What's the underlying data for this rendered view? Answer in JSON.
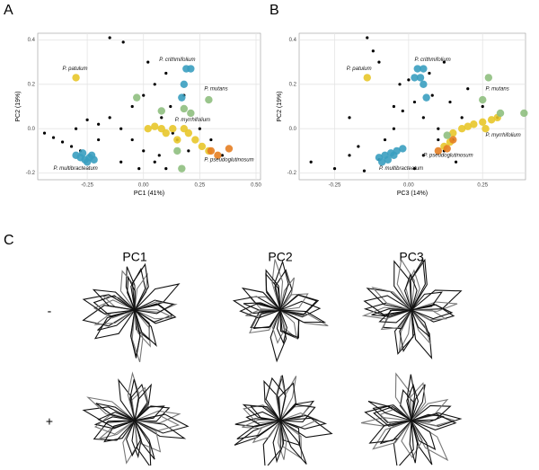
{
  "panels": [
    "A",
    "B",
    "C"
  ],
  "chart_data": [
    {
      "type": "scatter",
      "xlabel": "PC1 (41%)",
      "ylabel": "PC2 (19%)",
      "xlim": [
        -0.47,
        0.52
      ],
      "ylim": [
        -0.23,
        0.43
      ],
      "xticks": [
        -0.25,
        {
          "value": 0,
          "label": "0.00"
        },
        0.25,
        {
          "value": 0.5,
          "label": "0.50"
        }
      ],
      "yticks": [
        -0.2,
        {
          "value": 0,
          "label": "0.0"
        },
        0.2,
        0.4
      ],
      "grid": true,
      "series": [
        {
          "color": "#000000",
          "x": [
            -0.44,
            -0.4,
            -0.36,
            -0.32,
            -0.28,
            -0.24,
            -0.3,
            -0.25,
            -0.2,
            -0.15,
            -0.1,
            -0.05,
            0.0,
            0.05,
            0.1,
            -0.1,
            -0.05,
            0.0,
            0.05,
            0.1,
            0.12,
            -0.15,
            -0.09,
            0.02,
            0.08,
            0.15,
            0.2,
            0.25,
            0.3,
            0.35,
            0.18,
            -0.02,
            0.07,
            -0.2,
            0.13
          ],
          "y": [
            -0.02,
            -0.04,
            -0.06,
            -0.08,
            -0.1,
            -0.12,
            0.0,
            0.04,
            0.02,
            0.05,
            0.0,
            -0.05,
            -0.1,
            -0.15,
            -0.18,
            -0.15,
            0.1,
            0.15,
            0.2,
            0.25,
            0.1,
            0.41,
            0.39,
            0.3,
            0.05,
            -0.05,
            -0.1,
            0.0,
            -0.05,
            -0.12,
            0.15,
            -0.18,
            -0.12,
            -0.05,
            -0.02
          ]
        },
        {
          "color": "#3a9fc0",
          "x": [
            -0.3,
            -0.28,
            -0.26,
            -0.24,
            -0.22,
            -0.27,
            -0.23,
            -0.25,
            0.19,
            0.21,
            0.18,
            0.17
          ],
          "y": [
            -0.12,
            -0.13,
            -0.14,
            -0.13,
            -0.14,
            -0.11,
            -0.12,
            -0.15,
            0.27,
            0.27,
            0.2,
            0.14
          ]
        },
        {
          "color": "#e8c62a",
          "x": [
            -0.3,
            0.02,
            0.05,
            0.08,
            0.1,
            0.13,
            0.18,
            0.2,
            0.23,
            0.26,
            0.29,
            0.15
          ],
          "y": [
            0.23,
            0.0,
            0.01,
            0.0,
            -0.02,
            0.0,
            0.0,
            -0.02,
            -0.05,
            -0.08,
            -0.1,
            -0.05
          ]
        },
        {
          "color": "#8fbf7f",
          "x": [
            -0.03,
            0.18,
            0.21,
            0.29,
            0.08,
            0.17,
            0.15
          ],
          "y": [
            0.14,
            0.09,
            0.07,
            0.13,
            0.08,
            -0.18,
            -0.1
          ]
        },
        {
          "color": "#e67e22",
          "x": [
            0.3,
            0.38,
            0.33
          ],
          "y": [
            -0.1,
            -0.09,
            -0.12
          ]
        }
      ],
      "annotations": [
        {
          "text": "P. patulum",
          "x": -0.36,
          "y": 0.27
        },
        {
          "text": "P. crithmifolium",
          "x": 0.07,
          "y": 0.31
        },
        {
          "text": "P. mutans",
          "x": 0.27,
          "y": 0.18
        },
        {
          "text": "P. myrrhifolium",
          "x": 0.14,
          "y": 0.04
        },
        {
          "text": "P. pseudoglutinosum",
          "x": 0.27,
          "y": -0.14
        },
        {
          "text": "P. multibracteatum",
          "x": -0.4,
          "y": -0.18
        }
      ]
    },
    {
      "type": "scatter",
      "xlabel": "PC3 (14%)",
      "ylabel": "PC2 (19%)",
      "xlim": [
        -0.37,
        0.395
      ],
      "ylim": [
        -0.23,
        0.43
      ],
      "xticks": [
        -0.25,
        {
          "value": 0,
          "label": "0.00"
        },
        0.25
      ],
      "yticks": [
        -0.2,
        {
          "value": 0,
          "label": "0.0"
        },
        0.2,
        0.4
      ],
      "grid": true,
      "series": [
        {
          "color": "#000000",
          "x": [
            -0.33,
            -0.25,
            -0.2,
            -0.17,
            -0.14,
            -0.12,
            -0.1,
            -0.08,
            -0.05,
            -0.03,
            0.0,
            0.02,
            0.05,
            0.08,
            0.1,
            0.12,
            0.15,
            0.18,
            0.2,
            0.25,
            0.3,
            -0.15,
            -0.1,
            -0.05,
            0.05,
            0.1,
            0.02,
            -0.02,
            0.07,
            0.14,
            -0.2,
            0.12,
            0.16
          ],
          "y": [
            -0.15,
            -0.18,
            -0.12,
            -0.08,
            0.41,
            0.35,
            0.3,
            -0.05,
            0.1,
            0.2,
            0.22,
            -0.18,
            0.05,
            0.15,
            0.0,
            -0.1,
            -0.05,
            0.05,
            0.18,
            0.1,
            0.05,
            -0.19,
            -0.14,
            0.0,
            -0.12,
            -0.05,
            0.12,
            0.08,
            0.25,
            0.12,
            0.05,
            0.3,
            -0.15
          ]
        },
        {
          "color": "#3a9fc0",
          "x": [
            -0.1,
            -0.08,
            -0.06,
            -0.04,
            -0.02,
            -0.07,
            -0.05,
            -0.09,
            0.03,
            0.05,
            0.02,
            0.04,
            0.06,
            0.05
          ],
          "y": [
            -0.13,
            -0.12,
            -0.11,
            -0.1,
            -0.09,
            -0.14,
            -0.12,
            -0.15,
            0.27,
            0.27,
            0.23,
            0.23,
            0.14,
            0.2
          ]
        },
        {
          "color": "#e8c62a",
          "x": [
            -0.14,
            0.15,
            0.18,
            0.2,
            0.22,
            0.25,
            0.28,
            0.3,
            0.12,
            0.14,
            0.26
          ],
          "y": [
            0.23,
            -0.02,
            0.0,
            0.01,
            0.02,
            0.03,
            0.04,
            0.05,
            -0.08,
            -0.06,
            0.0
          ]
        },
        {
          "color": "#8fbf7f",
          "x": [
            0.27,
            0.25,
            0.31,
            0.39,
            0.13
          ],
          "y": [
            0.23,
            0.13,
            0.07,
            0.07,
            -0.03
          ]
        },
        {
          "color": "#e67e22",
          "x": [
            0.1,
            0.15,
            0.13
          ],
          "y": [
            -0.1,
            -0.05,
            -0.09
          ]
        }
      ],
      "annotations": [
        {
          "text": "P. patulum",
          "x": -0.21,
          "y": 0.27
        },
        {
          "text": "P. crithmifolium",
          "x": 0.02,
          "y": 0.31
        },
        {
          "text": "P. mutans",
          "x": 0.26,
          "y": 0.18
        },
        {
          "text": "P. myrrhifolium",
          "x": 0.26,
          "y": -0.03
        },
        {
          "text": "P. pseudoglutinosum",
          "x": 0.05,
          "y": -0.12
        },
        {
          "text": "P. multibracteatum",
          "x": -0.1,
          "y": -0.18
        }
      ]
    }
  ],
  "shape_panel": {
    "columns": [
      "PC1",
      "PC2",
      "PC3"
    ],
    "rows": [
      "-",
      "+"
    ]
  }
}
